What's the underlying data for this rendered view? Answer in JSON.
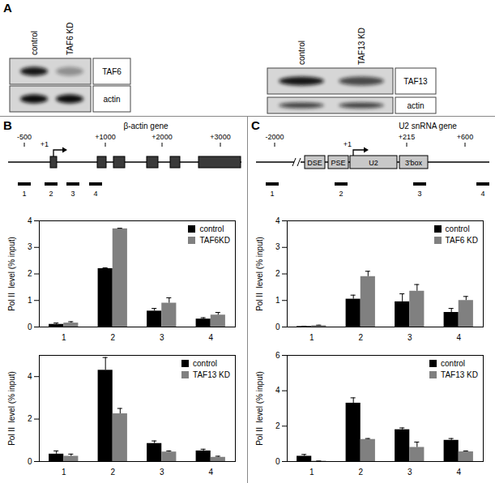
{
  "panels": [
    "A",
    "B",
    "C"
  ],
  "blots": [
    {
      "lanes": [
        "control",
        "TAF6 KD"
      ],
      "rows": [
        "TAF6",
        "actin"
      ]
    },
    {
      "lanes": [
        "control",
        "TAF13 KD"
      ],
      "rows": [
        "TAF13",
        "actin"
      ]
    }
  ],
  "gene_maps": [
    {
      "title": "β-actin gene",
      "coordinates": [
        "-500",
        "+1",
        "+1000",
        "+2000",
        "+3000"
      ],
      "amplicons": [
        "1",
        "2",
        "3",
        "4"
      ]
    },
    {
      "title": "U2 snRNA gene",
      "coordinates": [
        "-2000",
        "+1",
        "+215",
        "+600"
      ],
      "elements": [
        "DSE",
        "PSE",
        "U2",
        "3'box"
      ],
      "amplicons": [
        "1",
        "2",
        "3",
        "4"
      ]
    }
  ],
  "chart_data": [
    {
      "type": "bar",
      "categories": [
        "1",
        "2",
        "3",
        "4"
      ],
      "ylabel": "Pol II  level (% input)",
      "ylim": [
        0,
        4
      ],
      "yticks": [
        0,
        1,
        2,
        3,
        4
      ],
      "grid": false,
      "legend": "upper right",
      "series": [
        {
          "name": "control",
          "color": "#000000",
          "values": [
            0.1,
            2.2,
            0.6,
            0.3
          ],
          "errors": [
            0.05,
            0.03,
            0.1,
            0.05
          ]
        },
        {
          "name": "TAF6KD",
          "color": "#808080",
          "values": [
            0.15,
            3.7,
            0.9,
            0.45
          ],
          "errors": [
            0.05,
            0.02,
            0.2,
            0.1
          ]
        }
      ]
    },
    {
      "type": "bar",
      "categories": [
        "1",
        "2",
        "3",
        "4"
      ],
      "ylabel": "Pol II  level (% input)",
      "ylim": [
        0,
        5
      ],
      "yticks": [
        0,
        2,
        4
      ],
      "grid": false,
      "legend": "upper right",
      "series": [
        {
          "name": "control",
          "color": "#000000",
          "values": [
            0.35,
            4.3,
            0.85,
            0.5
          ],
          "errors": [
            0.15,
            0.6,
            0.12,
            0.08
          ]
        },
        {
          "name": "TAF13 KD",
          "color": "#808080",
          "values": [
            0.25,
            2.25,
            0.45,
            0.2
          ],
          "errors": [
            0.1,
            0.25,
            0.05,
            0.05
          ]
        }
      ]
    },
    {
      "type": "bar",
      "categories": [
        "1",
        "2",
        "3",
        "4"
      ],
      "ylabel": "Pol II  level (% input)",
      "ylim": [
        0,
        4
      ],
      "yticks": [
        0,
        1,
        2,
        3,
        4
      ],
      "grid": false,
      "legend": "upper right",
      "series": [
        {
          "name": "control",
          "color": "#000000",
          "values": [
            0.02,
            1.05,
            0.95,
            0.55
          ],
          "errors": [
            0.01,
            0.15,
            0.3,
            0.15
          ]
        },
        {
          "name": "TAF6 KD",
          "color": "#808080",
          "values": [
            0.05,
            1.9,
            1.35,
            1.0
          ],
          "errors": [
            0.02,
            0.2,
            0.25,
            0.15
          ]
        }
      ]
    },
    {
      "type": "bar",
      "categories": [
        "1",
        "2",
        "3",
        "4"
      ],
      "ylabel": "Pol II  level (% input)",
      "ylim": [
        0,
        6
      ],
      "yticks": [
        0,
        2,
        4,
        6
      ],
      "grid": false,
      "legend": "upper right",
      "series": [
        {
          "name": "control",
          "color": "#000000",
          "values": [
            0.3,
            3.3,
            1.8,
            1.2
          ],
          "errors": [
            0.1,
            0.3,
            0.1,
            0.1
          ]
        },
        {
          "name": "TAF13 KD",
          "color": "#808080",
          "values": [
            0.02,
            1.25,
            0.8,
            0.55
          ],
          "errors": [
            0.01,
            0.05,
            0.3,
            0.05
          ]
        }
      ]
    }
  ]
}
